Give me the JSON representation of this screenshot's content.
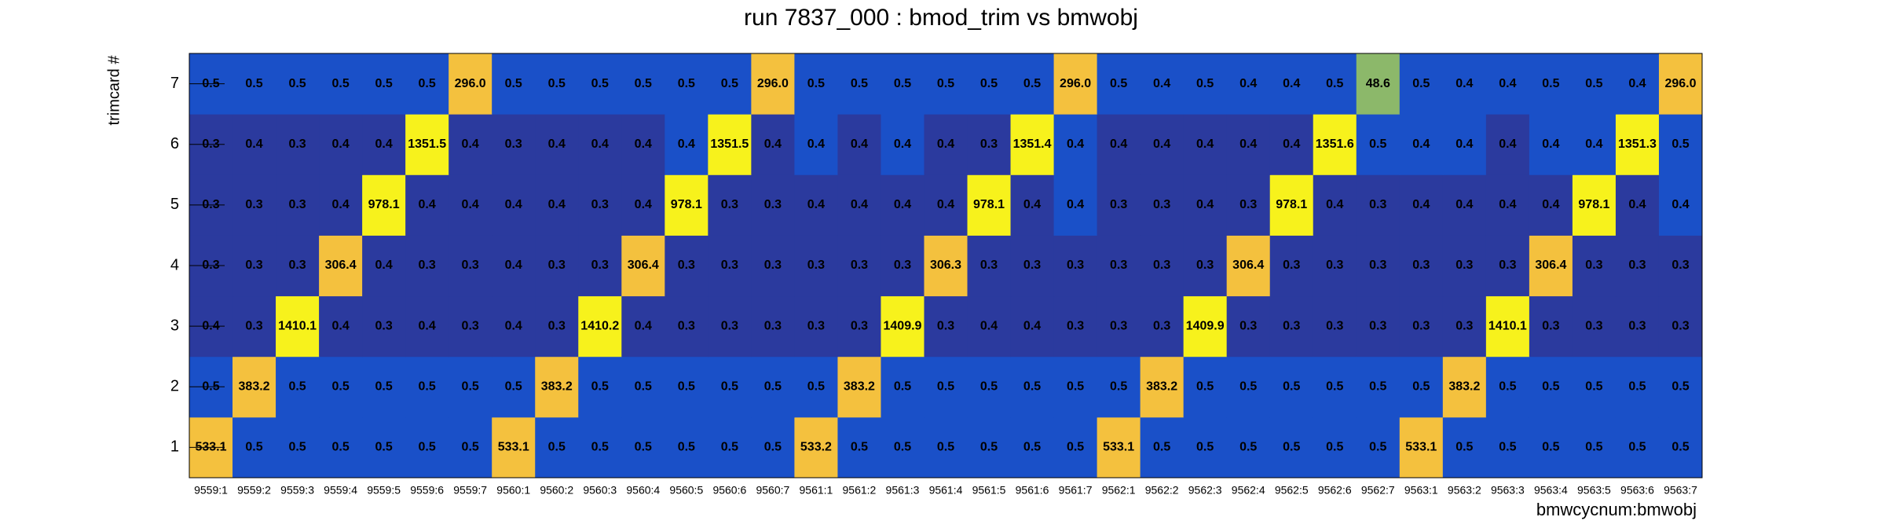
{
  "chart_data": {
    "type": "heatmap",
    "title": "run 7837_000 : bmod_trim vs bmwobj",
    "x_label": "bmwcycnum:bmwobj",
    "y_label": "trimcard #",
    "x_categories": [
      "9559:1",
      "9559:2",
      "9559:3",
      "9559:4",
      "9559:5",
      "9559:6",
      "9559:7",
      "9560:1",
      "9560:2",
      "9560:3",
      "9560:4",
      "9560:5",
      "9560:6",
      "9560:7",
      "9561:1",
      "9561:2",
      "9561:3",
      "9561:4",
      "9561:5",
      "9561:6",
      "9561:7",
      "9562:1",
      "9562:2",
      "9562:3",
      "9562:4",
      "9562:5",
      "9562:6",
      "9562:7",
      "9563:1",
      "9563:2",
      "9563:3",
      "9563:4",
      "9563:5",
      "9563:6",
      "9563:7"
    ],
    "y_categories": [
      "1",
      "2",
      "3",
      "4",
      "5",
      "6",
      "7"
    ],
    "values": [
      [
        533.1,
        0.5,
        0.5,
        0.5,
        0.5,
        0.5,
        0.5,
        533.1,
        0.5,
        0.5,
        0.5,
        0.5,
        0.5,
        0.5,
        533.2,
        0.5,
        0.5,
        0.5,
        0.5,
        0.5,
        0.5,
        533.1,
        0.5,
        0.5,
        0.5,
        0.5,
        0.5,
        0.5,
        533.1,
        0.5,
        0.5,
        0.5,
        0.5,
        0.5,
        0.5
      ],
      [
        0.5,
        383.2,
        0.5,
        0.5,
        0.5,
        0.5,
        0.5,
        0.5,
        383.2,
        0.5,
        0.5,
        0.5,
        0.5,
        0.5,
        0.5,
        383.2,
        0.5,
        0.5,
        0.5,
        0.5,
        0.5,
        0.5,
        383.2,
        0.5,
        0.5,
        0.5,
        0.5,
        0.5,
        0.5,
        383.2,
        0.5,
        0.5,
        0.5,
        0.5,
        0.5
      ],
      [
        0.4,
        0.3,
        1410.1,
        0.4,
        0.3,
        0.4,
        0.3,
        0.4,
        0.3,
        1410.2,
        0.4,
        0.3,
        0.3,
        0.3,
        0.3,
        0.3,
        1409.9,
        0.3,
        0.4,
        0.4,
        0.3,
        0.3,
        0.3,
        1409.9,
        0.3,
        0.3,
        0.3,
        0.3,
        0.3,
        0.3,
        1410.1,
        0.3,
        0.3,
        0.3,
        0.3
      ],
      [
        0.3,
        0.3,
        0.3,
        306.4,
        0.4,
        0.3,
        0.3,
        0.4,
        0.3,
        0.3,
        306.4,
        0.3,
        0.3,
        0.3,
        0.3,
        0.3,
        0.3,
        306.3,
        0.3,
        0.3,
        0.3,
        0.3,
        0.3,
        0.3,
        306.4,
        0.3,
        0.3,
        0.3,
        0.3,
        0.3,
        0.3,
        306.4,
        0.3,
        0.3,
        0.3
      ],
      [
        0.3,
        0.3,
        0.3,
        0.4,
        978.1,
        0.4,
        0.4,
        0.4,
        0.4,
        0.3,
        0.4,
        978.1,
        0.3,
        0.3,
        0.4,
        0.4,
        0.4,
        0.4,
        978.1,
        0.4,
        0.4,
        0.3,
        0.3,
        0.4,
        0.3,
        978.1,
        0.4,
        0.3,
        0.4,
        0.4,
        0.4,
        0.4,
        978.1,
        0.4,
        0.4
      ],
      [
        0.3,
        0.4,
        0.3,
        0.4,
        0.4,
        1351.5,
        0.4,
        0.3,
        0.4,
        0.4,
        0.4,
        0.4,
        1351.5,
        0.4,
        0.4,
        0.4,
        0.4,
        0.4,
        0.3,
        1351.4,
        0.4,
        0.4,
        0.4,
        0.4,
        0.4,
        0.4,
        1351.6,
        0.5,
        0.4,
        0.4,
        0.4,
        0.4,
        0.4,
        1351.3,
        0.5
      ],
      [
        0.5,
        0.5,
        0.5,
        0.5,
        0.5,
        0.5,
        296,
        0.5,
        0.5,
        0.5,
        0.5,
        0.5,
        0.5,
        296,
        0.5,
        0.5,
        0.5,
        0.5,
        0.5,
        0.5,
        296,
        0.5,
        0.4,
        0.5,
        0.4,
        0.4,
        0.5,
        48.6,
        0.5,
        0.4,
        0.4,
        0.5,
        0.5,
        0.4,
        296
      ]
    ],
    "value_labels": [
      [
        "533.1",
        "0.5",
        "0.5",
        "0.5",
        "0.5",
        "0.5",
        "0.5",
        "533.1",
        "0.5",
        "0.5",
        "0.5",
        "0.5",
        "0.5",
        "0.5",
        "533.2",
        "0.5",
        "0.5",
        "0.5",
        "0.5",
        "0.5",
        "0.5",
        "533.1",
        "0.5",
        "0.5",
        "0.5",
        "0.5",
        "0.5",
        "0.5",
        "533.1",
        "0.5",
        "0.5",
        "0.5",
        "0.5",
        "0.5",
        "0.5"
      ],
      [
        "0.5",
        "383.2",
        "0.5",
        "0.5",
        "0.5",
        "0.5",
        "0.5",
        "0.5",
        "383.2",
        "0.5",
        "0.5",
        "0.5",
        "0.5",
        "0.5",
        "0.5",
        "383.2",
        "0.5",
        "0.5",
        "0.5",
        "0.5",
        "0.5",
        "0.5",
        "383.2",
        "0.5",
        "0.5",
        "0.5",
        "0.5",
        "0.5",
        "0.5",
        "383.2",
        "0.5",
        "0.5",
        "0.5",
        "0.5",
        "0.5"
      ],
      [
        "0.4",
        "0.3",
        "1410.1",
        "0.4",
        "0.3",
        "0.4",
        "0.3",
        "0.4",
        "0.3",
        "1410.2",
        "0.4",
        "0.3",
        "0.3",
        "0.3",
        "0.3",
        "0.3",
        "1409.9",
        "0.3",
        "0.4",
        "0.4",
        "0.3",
        "0.3",
        "0.3",
        "1409.9",
        "0.3",
        "0.3",
        "0.3",
        "0.3",
        "0.3",
        "0.3",
        "1410.1",
        "0.3",
        "0.3",
        "0.3",
        "0.3"
      ],
      [
        "0.3",
        "0.3",
        "0.3",
        "306.4",
        "0.4",
        "0.3",
        "0.3",
        "0.4",
        "0.3",
        "0.3",
        "306.4",
        "0.3",
        "0.3",
        "0.3",
        "0.3",
        "0.3",
        "0.3",
        "306.3",
        "0.3",
        "0.3",
        "0.3",
        "0.3",
        "0.3",
        "0.3",
        "306.4",
        "0.3",
        "0.3",
        "0.3",
        "0.3",
        "0.3",
        "0.3",
        "306.4",
        "0.3",
        "0.3",
        "0.3"
      ],
      [
        "0.3",
        "0.3",
        "0.3",
        "0.4",
        "978.1",
        "0.4",
        "0.4",
        "0.4",
        "0.4",
        "0.3",
        "0.4",
        "978.1",
        "0.3",
        "0.3",
        "0.4",
        "0.4",
        "0.4",
        "0.4",
        "978.1",
        "0.4",
        "0.4",
        "0.3",
        "0.3",
        "0.4",
        "0.3",
        "978.1",
        "0.4",
        "0.3",
        "0.4",
        "0.4",
        "0.4",
        "0.4",
        "978.1",
        "0.4",
        "0.4"
      ],
      [
        "0.3",
        "0.4",
        "0.3",
        "0.4",
        "0.4",
        "1351.5",
        "0.4",
        "0.3",
        "0.4",
        "0.4",
        "0.4",
        "0.4",
        "1351.5",
        "0.4",
        "0.4",
        "0.4",
        "0.4",
        "0.4",
        "0.3",
        "1351.4",
        "0.4",
        "0.4",
        "0.4",
        "0.4",
        "0.4",
        "0.4",
        "1351.6",
        "0.5",
        "0.4",
        "0.4",
        "0.4",
        "0.4",
        "0.4",
        "1351.3",
        "0.5"
      ],
      [
        "0.5",
        "0.5",
        "0.5",
        "0.5",
        "0.5",
        "0.5",
        "296.0",
        "0.5",
        "0.5",
        "0.5",
        "0.5",
        "0.5",
        "0.5",
        "296.0",
        "0.5",
        "0.5",
        "0.5",
        "0.5",
        "0.5",
        "0.5",
        "296.0",
        "0.5",
        "0.4",
        "0.5",
        "0.4",
        "0.4",
        "0.5",
        "48.6",
        "0.5",
        "0.4",
        "0.4",
        "0.5",
        "0.5",
        "0.4",
        "296.0"
      ]
    ],
    "colors": [
      [
        "#f4c13e",
        "#1a50c8",
        "#1a50c8",
        "#1a50c8",
        "#1a50c8",
        "#1a50c8",
        "#1a50c8",
        "#f4c13e",
        "#1a50c8",
        "#1a50c8",
        "#1a50c8",
        "#1a50c8",
        "#1a50c8",
        "#1a50c8",
        "#f4c13e",
        "#1a50c8",
        "#1a50c8",
        "#1a50c8",
        "#1a50c8",
        "#1a50c8",
        "#1a50c8",
        "#f4c13e",
        "#1a50c8",
        "#1a50c8",
        "#1a50c8",
        "#1a50c8",
        "#1a50c8",
        "#1a50c8",
        "#f4c13e",
        "#1a50c8",
        "#1a50c8",
        "#1a50c8",
        "#1a50c8",
        "#1a50c8",
        "#1a50c8"
      ],
      [
        "#1a50c8",
        "#f4c13e",
        "#1a50c8",
        "#1a50c8",
        "#1a50c8",
        "#1a50c8",
        "#1a50c8",
        "#1a50c8",
        "#f4c13e",
        "#1a50c8",
        "#1a50c8",
        "#1a50c8",
        "#1a50c8",
        "#1a50c8",
        "#1a50c8",
        "#f4c13e",
        "#1a50c8",
        "#1a50c8",
        "#1a50c8",
        "#1a50c8",
        "#1a50c8",
        "#1a50c8",
        "#f4c13e",
        "#1a50c8",
        "#1a50c8",
        "#1a50c8",
        "#1a50c8",
        "#1a50c8",
        "#1a50c8",
        "#f4c13e",
        "#1a50c8",
        "#1a50c8",
        "#1a50c8",
        "#1a50c8",
        "#1a50c8"
      ],
      [
        "#2b3a9e",
        "#2b3a9e",
        "#f7f21c",
        "#2b3a9e",
        "#2b3a9e",
        "#2b3a9e",
        "#2b3a9e",
        "#2b3a9e",
        "#2b3a9e",
        "#f7f21c",
        "#2b3a9e",
        "#2b3a9e",
        "#2b3a9e",
        "#2b3a9e",
        "#2b3a9e",
        "#2b3a9e",
        "#f7f21c",
        "#2b3a9e",
        "#2b3a9e",
        "#2b3a9e",
        "#2b3a9e",
        "#2b3a9e",
        "#2b3a9e",
        "#f7f21c",
        "#2b3a9e",
        "#2b3a9e",
        "#2b3a9e",
        "#2b3a9e",
        "#2b3a9e",
        "#2b3a9e",
        "#f7f21c",
        "#2b3a9e",
        "#2b3a9e",
        "#2b3a9e",
        "#2b3a9e"
      ],
      [
        "#2b3a9e",
        "#2b3a9e",
        "#2b3a9e",
        "#f4c13e",
        "#2b3a9e",
        "#2b3a9e",
        "#2b3a9e",
        "#2b3a9e",
        "#2b3a9e",
        "#2b3a9e",
        "#f4c13e",
        "#2b3a9e",
        "#2b3a9e",
        "#2b3a9e",
        "#2b3a9e",
        "#2b3a9e",
        "#2b3a9e",
        "#f4c13e",
        "#2b3a9e",
        "#2b3a9e",
        "#2b3a9e",
        "#2b3a9e",
        "#2b3a9e",
        "#2b3a9e",
        "#f4c13e",
        "#2b3a9e",
        "#2b3a9e",
        "#2b3a9e",
        "#2b3a9e",
        "#2b3a9e",
        "#2b3a9e",
        "#f4c13e",
        "#2b3a9e",
        "#2b3a9e",
        "#2b3a9e"
      ],
      [
        "#2b3a9e",
        "#2b3a9e",
        "#2b3a9e",
        "#2b3a9e",
        "#f7f21c",
        "#2b3a9e",
        "#2b3a9e",
        "#2b3a9e",
        "#2b3a9e",
        "#2b3a9e",
        "#2b3a9e",
        "#f7f21c",
        "#2b3a9e",
        "#2b3a9e",
        "#2b3a9e",
        "#2b3a9e",
        "#2b3a9e",
        "#2b3a9e",
        "#f7f21c",
        "#2b3a9e",
        "#1a50c8",
        "#2b3a9e",
        "#2b3a9e",
        "#2b3a9e",
        "#2b3a9e",
        "#f7f21c",
        "#2b3a9e",
        "#2b3a9e",
        "#2b3a9e",
        "#2b3a9e",
        "#2b3a9e",
        "#2b3a9e",
        "#f7f21c",
        "#2b3a9e",
        "#1a50c8"
      ],
      [
        "#2b3a9e",
        "#2b3a9e",
        "#2b3a9e",
        "#2b3a9e",
        "#2b3a9e",
        "#f7f21c",
        "#2b3a9e",
        "#2b3a9e",
        "#2b3a9e",
        "#2b3a9e",
        "#2b3a9e",
        "#1a50c8",
        "#f7f21c",
        "#2b3a9e",
        "#1a50c8",
        "#2b3a9e",
        "#1a50c8",
        "#2b3a9e",
        "#2b3a9e",
        "#f7f21c",
        "#1a50c8",
        "#2b3a9e",
        "#2b3a9e",
        "#2b3a9e",
        "#2b3a9e",
        "#2b3a9e",
        "#f7f21c",
        "#1a50c8",
        "#1a50c8",
        "#1a50c8",
        "#2b3a9e",
        "#1a50c8",
        "#1a50c8",
        "#f7f21c",
        "#1a50c8"
      ],
      [
        "#1a50c8",
        "#1a50c8",
        "#1a50c8",
        "#1a50c8",
        "#1a50c8",
        "#1a50c8",
        "#f4c13e",
        "#1a50c8",
        "#1a50c8",
        "#1a50c8",
        "#1a50c8",
        "#1a50c8",
        "#1a50c8",
        "#f4c13e",
        "#1a50c8",
        "#1a50c8",
        "#1a50c8",
        "#1a50c8",
        "#1a50c8",
        "#1a50c8",
        "#f4c13e",
        "#1a50c8",
        "#1a50c8",
        "#1a50c8",
        "#1a50c8",
        "#1a50c8",
        "#1a50c8",
        "#8cb86a",
        "#1a50c8",
        "#1a50c8",
        "#1a50c8",
        "#1a50c8",
        "#1a50c8",
        "#1a50c8",
        "#f4c13e"
      ]
    ]
  }
}
